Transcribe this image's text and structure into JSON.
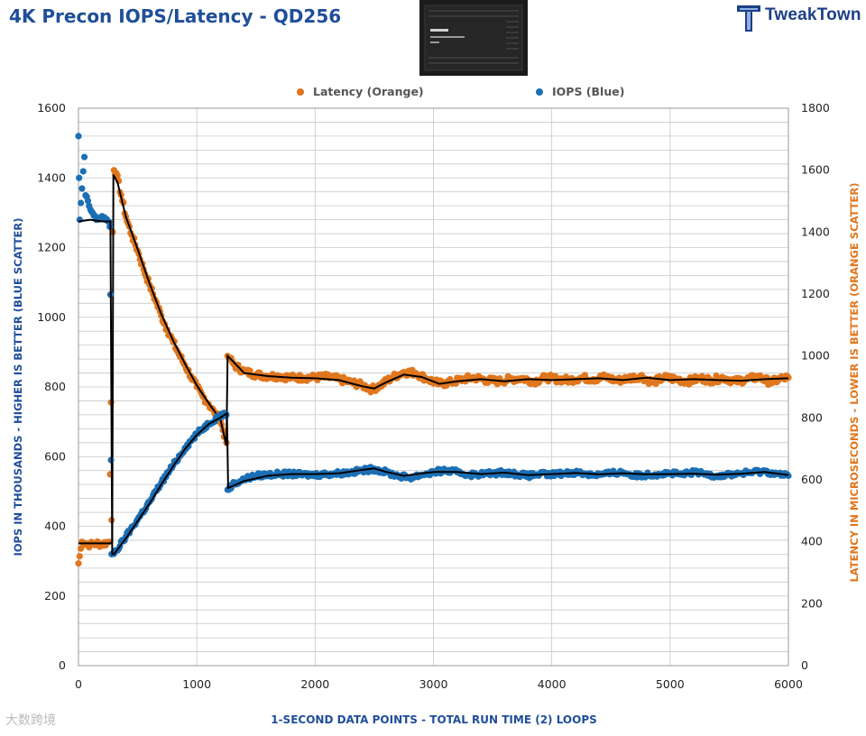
{
  "page": {
    "title": "4K Precon IOPS/Latency - QD256",
    "brand": "TweakTown",
    "watermark": "大数跨境"
  },
  "colors": {
    "title": "#1f4e9a",
    "latency": "#e0761d",
    "iops": "#1b6fb5",
    "average_line": "#000000",
    "grid": "#c8c8c8",
    "axis_label": "#1f4e9a"
  },
  "chart_data": {
    "type": "scatter",
    "title": "4K Precon IOPS/Latency - QD256",
    "xlabel": "1-SECOND  DATA POINTS - TOTAL RUN TIME (2) LOOPS",
    "ylabel_left": "IOPS IN THOUSANDS - HIGHER IS BETTER (BLUE SCATTER)",
    "ylabel_right": "LATENCY IN MICROSECONDS - LOWER IS BETTER (ORANGE SCATTER)",
    "xlim": [
      0,
      6000
    ],
    "ylim_left": [
      0,
      1600
    ],
    "ylim_right": [
      0,
      1800
    ],
    "x_ticks": [
      0,
      1000,
      2000,
      3000,
      4000,
      5000,
      6000
    ],
    "y_ticks_left": [
      0,
      200,
      400,
      600,
      800,
      1000,
      1200,
      1400,
      1600
    ],
    "y_ticks_right": [
      0,
      200,
      400,
      600,
      800,
      1000,
      1200,
      1400,
      1600,
      1800
    ],
    "grid": true,
    "legend_position": "top-center",
    "series": [
      {
        "name": "Latency (Orange)",
        "axis": "right",
        "points": [
          [
            0,
            330
          ],
          [
            30,
            400
          ],
          [
            60,
            395
          ],
          [
            100,
            390
          ],
          [
            150,
            395
          ],
          [
            200,
            392
          ],
          [
            260,
            400
          ],
          [
            275,
            850
          ],
          [
            280,
            470
          ],
          [
            290,
            1400
          ],
          [
            300,
            1600
          ],
          [
            320,
            1590
          ],
          [
            360,
            1520
          ],
          [
            400,
            1450
          ],
          [
            450,
            1390
          ],
          [
            500,
            1340
          ],
          [
            550,
            1280
          ],
          [
            600,
            1230
          ],
          [
            650,
            1180
          ],
          [
            700,
            1130
          ],
          [
            750,
            1085
          ],
          [
            800,
            1045
          ],
          [
            850,
            1005
          ],
          [
            900,
            970
          ],
          [
            950,
            935
          ],
          [
            1000,
            900
          ],
          [
            1050,
            870
          ],
          [
            1100,
            845
          ],
          [
            1150,
            815
          ],
          [
            1200,
            790
          ],
          [
            1250,
            720
          ],
          [
            1260,
            1000
          ],
          [
            1280,
            990
          ],
          [
            1320,
            970
          ],
          [
            1400,
            950
          ],
          [
            1500,
            940
          ],
          [
            1600,
            935
          ],
          [
            1700,
            935
          ],
          [
            1800,
            930
          ],
          [
            1900,
            930
          ],
          [
            2000,
            930
          ],
          [
            2100,
            932
          ],
          [
            2200,
            925
          ],
          [
            2300,
            915
          ],
          [
            2400,
            905
          ],
          [
            2480,
            892
          ],
          [
            2550,
            905
          ],
          [
            2650,
            930
          ],
          [
            2750,
            948
          ],
          [
            2850,
            945
          ],
          [
            2950,
            925
          ],
          [
            3050,
            910
          ],
          [
            3150,
            915
          ],
          [
            3250,
            925
          ],
          [
            3350,
            930
          ],
          [
            3450,
            922
          ],
          [
            3550,
            918
          ],
          [
            3650,
            925
          ],
          [
            3750,
            928
          ],
          [
            3850,
            918
          ],
          [
            3950,
            930
          ],
          [
            4050,
            925
          ],
          [
            4150,
            922
          ],
          [
            4250,
            930
          ],
          [
            4350,
            925
          ],
          [
            4450,
            932
          ],
          [
            4550,
            920
          ],
          [
            4650,
            928
          ],
          [
            4750,
            935
          ],
          [
            4850,
            915
          ],
          [
            4950,
            930
          ],
          [
            5050,
            925
          ],
          [
            5150,
            918
          ],
          [
            5250,
            928
          ],
          [
            5350,
            922
          ],
          [
            5450,
            930
          ],
          [
            5550,
            918
          ],
          [
            5650,
            925
          ],
          [
            5750,
            932
          ],
          [
            5850,
            915
          ],
          [
            5950,
            928
          ],
          [
            6000,
            930
          ]
        ],
        "average_line": [
          [
            0,
            395
          ],
          [
            270,
            395
          ],
          [
            285,
            400
          ],
          [
            295,
            1585
          ],
          [
            330,
            1560
          ],
          [
            400,
            1450
          ],
          [
            500,
            1345
          ],
          [
            600,
            1235
          ],
          [
            700,
            1135
          ],
          [
            800,
            1050
          ],
          [
            900,
            975
          ],
          [
            1000,
            905
          ],
          [
            1100,
            848
          ],
          [
            1200,
            795
          ],
          [
            1250,
            710
          ],
          [
            1260,
            1000
          ],
          [
            1300,
            985
          ],
          [
            1400,
            945
          ],
          [
            1600,
            935
          ],
          [
            1800,
            930
          ],
          [
            2000,
            928
          ],
          [
            2200,
            922
          ],
          [
            2400,
            902
          ],
          [
            2500,
            895
          ],
          [
            2600,
            915
          ],
          [
            2750,
            940
          ],
          [
            2900,
            932
          ],
          [
            3050,
            910
          ],
          [
            3200,
            918
          ],
          [
            3400,
            925
          ],
          [
            3600,
            918
          ],
          [
            3800,
            925
          ],
          [
            4000,
            922
          ],
          [
            4200,
            925
          ],
          [
            4400,
            928
          ],
          [
            4600,
            922
          ],
          [
            4800,
            930
          ],
          [
            5000,
            922
          ],
          [
            5200,
            925
          ],
          [
            5400,
            922
          ],
          [
            5600,
            920
          ],
          [
            5800,
            925
          ],
          [
            6000,
            928
          ]
        ]
      },
      {
        "name": "IOPS (Blue)",
        "axis": "left",
        "points": [
          [
            0,
            1520
          ],
          [
            5,
            1400
          ],
          [
            10,
            1280
          ],
          [
            50,
            1460
          ],
          [
            60,
            1350
          ],
          [
            100,
            1310
          ],
          [
            150,
            1280
          ],
          [
            200,
            1290
          ],
          [
            250,
            1275
          ],
          [
            265,
            1260
          ],
          [
            270,
            1065
          ],
          [
            275,
            590
          ],
          [
            280,
            320
          ],
          [
            320,
            330
          ],
          [
            400,
            370
          ],
          [
            500,
            420
          ],
          [
            600,
            470
          ],
          [
            700,
            525
          ],
          [
            800,
            575
          ],
          [
            900,
            625
          ],
          [
            1000,
            665
          ],
          [
            1100,
            695
          ],
          [
            1200,
            720
          ],
          [
            1250,
            720
          ],
          [
            1260,
            505
          ],
          [
            1300,
            520
          ],
          [
            1400,
            535
          ],
          [
            1500,
            545
          ],
          [
            1600,
            548
          ],
          [
            1700,
            550
          ],
          [
            1800,
            550
          ],
          [
            1900,
            548
          ],
          [
            2000,
            548
          ],
          [
            2100,
            550
          ],
          [
            2200,
            552
          ],
          [
            2300,
            555
          ],
          [
            2400,
            560
          ],
          [
            2500,
            565
          ],
          [
            2600,
            555
          ],
          [
            2700,
            545
          ],
          [
            2800,
            540
          ],
          [
            2900,
            548
          ],
          [
            3000,
            555
          ],
          [
            3100,
            560
          ],
          [
            3200,
            555
          ],
          [
            3300,
            548
          ],
          [
            3400,
            550
          ],
          [
            3500,
            552
          ],
          [
            3600,
            555
          ],
          [
            3700,
            550
          ],
          [
            3800,
            545
          ],
          [
            3900,
            550
          ],
          [
            4000,
            548
          ],
          [
            4100,
            552
          ],
          [
            4200,
            555
          ],
          [
            4300,
            550
          ],
          [
            4400,
            548
          ],
          [
            4500,
            552
          ],
          [
            4600,
            555
          ],
          [
            4700,
            545
          ],
          [
            4800,
            548
          ],
          [
            4900,
            550
          ],
          [
            5000,
            552
          ],
          [
            5100,
            548
          ],
          [
            5200,
            555
          ],
          [
            5300,
            550
          ],
          [
            5400,
            545
          ],
          [
            5500,
            548
          ],
          [
            5600,
            552
          ],
          [
            5700,
            555
          ],
          [
            5800,
            558
          ],
          [
            5900,
            550
          ],
          [
            6000,
            545
          ]
        ],
        "average_line": [
          [
            0,
            1275
          ],
          [
            100,
            1280
          ],
          [
            200,
            1275
          ],
          [
            270,
            1275
          ],
          [
            285,
            320
          ],
          [
            300,
            320
          ],
          [
            400,
            365
          ],
          [
            500,
            415
          ],
          [
            600,
            465
          ],
          [
            700,
            520
          ],
          [
            800,
            572
          ],
          [
            900,
            622
          ],
          [
            1000,
            662
          ],
          [
            1100,
            693
          ],
          [
            1200,
            712
          ],
          [
            1255,
            725
          ],
          [
            1265,
            510
          ],
          [
            1300,
            515
          ],
          [
            1400,
            530
          ],
          [
            1600,
            545
          ],
          [
            1800,
            550
          ],
          [
            2000,
            550
          ],
          [
            2200,
            552
          ],
          [
            2400,
            562
          ],
          [
            2500,
            566
          ],
          [
            2600,
            556
          ],
          [
            2750,
            545
          ],
          [
            3000,
            556
          ],
          [
            3200,
            556
          ],
          [
            3400,
            550
          ],
          [
            3600,
            554
          ],
          [
            3800,
            547
          ],
          [
            4000,
            550
          ],
          [
            4200,
            553
          ],
          [
            4400,
            549
          ],
          [
            4600,
            552
          ],
          [
            4800,
            549
          ],
          [
            5000,
            550
          ],
          [
            5200,
            551
          ],
          [
            5400,
            548
          ],
          [
            5600,
            551
          ],
          [
            5800,
            556
          ],
          [
            6000,
            547
          ]
        ]
      }
    ]
  }
}
